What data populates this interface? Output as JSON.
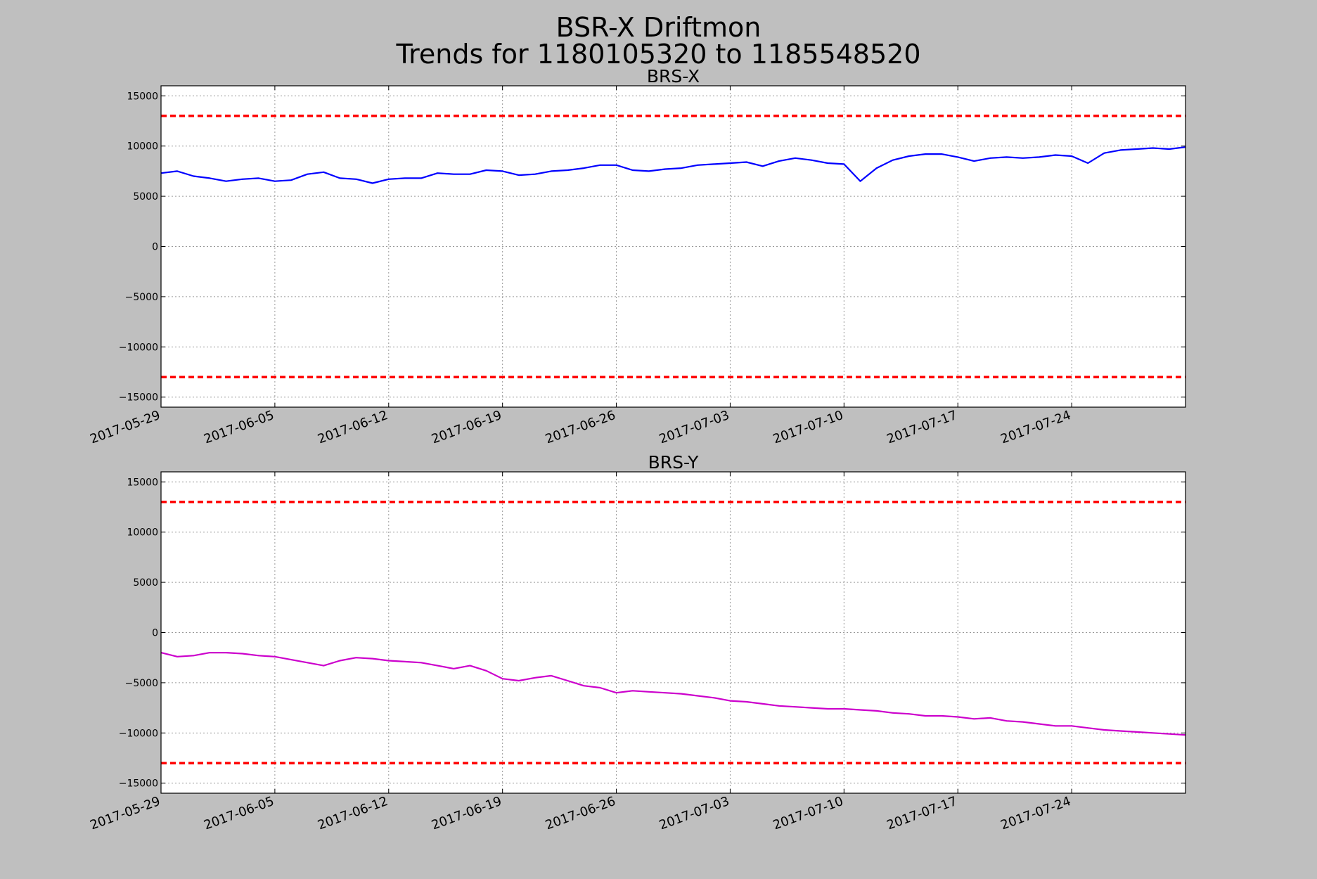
{
  "figure": {
    "title_line1": "BSR-X Driftmon",
    "title_line2": "Trends for 1180105320 to 1185548520",
    "background": "#bfbfbf"
  },
  "chart_data": [
    {
      "type": "line",
      "title": "BRS-X",
      "xlabel": "",
      "ylabel": "",
      "x_ticks": [
        "2017-05-29",
        "2017-06-05",
        "2017-06-12",
        "2017-06-19",
        "2017-06-26",
        "2017-07-03",
        "2017-07-10",
        "2017-07-17",
        "2017-07-24"
      ],
      "x_range": [
        "2017-05-29",
        "2017-07-31"
      ],
      "ylim": [
        -16000,
        16000
      ],
      "y_ticks": [
        15000,
        10000,
        5000,
        0,
        -5000,
        -10000,
        -15000
      ],
      "grid": true,
      "series": [
        {
          "color": "#0000ff",
          "points": [
            [
              "2017-05-29",
              7300
            ],
            [
              "2017-05-30",
              7500
            ],
            [
              "2017-05-31",
              7000
            ],
            [
              "2017-06-01",
              6800
            ],
            [
              "2017-06-02",
              6500
            ],
            [
              "2017-06-03",
              6700
            ],
            [
              "2017-06-04",
              6800
            ],
            [
              "2017-06-05",
              6500
            ],
            [
              "2017-06-06",
              6600
            ],
            [
              "2017-06-07",
              7200
            ],
            [
              "2017-06-08",
              7400
            ],
            [
              "2017-06-09",
              6800
            ],
            [
              "2017-06-10",
              6700
            ],
            [
              "2017-06-11",
              6300
            ],
            [
              "2017-06-12",
              6700
            ],
            [
              "2017-06-13",
              6800
            ],
            [
              "2017-06-14",
              6800
            ],
            [
              "2017-06-15",
              7300
            ],
            [
              "2017-06-16",
              7200
            ],
            [
              "2017-06-17",
              7200
            ],
            [
              "2017-06-18",
              7600
            ],
            [
              "2017-06-19",
              7500
            ],
            [
              "2017-06-20",
              7100
            ],
            [
              "2017-06-21",
              7200
            ],
            [
              "2017-06-22",
              7500
            ],
            [
              "2017-06-23",
              7600
            ],
            [
              "2017-06-24",
              7800
            ],
            [
              "2017-06-25",
              8100
            ],
            [
              "2017-06-26",
              8100
            ],
            [
              "2017-06-27",
              7600
            ],
            [
              "2017-06-28",
              7500
            ],
            [
              "2017-06-29",
              7700
            ],
            [
              "2017-06-30",
              7800
            ],
            [
              "2017-07-01",
              8100
            ],
            [
              "2017-07-02",
              8200
            ],
            [
              "2017-07-03",
              8300
            ],
            [
              "2017-07-04",
              8400
            ],
            [
              "2017-07-05",
              8000
            ],
            [
              "2017-07-06",
              8500
            ],
            [
              "2017-07-07",
              8800
            ],
            [
              "2017-07-08",
              8600
            ],
            [
              "2017-07-09",
              8300
            ],
            [
              "2017-07-10",
              8200
            ],
            [
              "2017-07-11",
              6500
            ],
            [
              "2017-07-12",
              7800
            ],
            [
              "2017-07-13",
              8600
            ],
            [
              "2017-07-14",
              9000
            ],
            [
              "2017-07-15",
              9200
            ],
            [
              "2017-07-16",
              9200
            ],
            [
              "2017-07-17",
              8900
            ],
            [
              "2017-07-18",
              8500
            ],
            [
              "2017-07-19",
              8800
            ],
            [
              "2017-07-20",
              8900
            ],
            [
              "2017-07-21",
              8800
            ],
            [
              "2017-07-22",
              8900
            ],
            [
              "2017-07-23",
              9100
            ],
            [
              "2017-07-24",
              9000
            ],
            [
              "2017-07-25",
              8300
            ],
            [
              "2017-07-26",
              9300
            ],
            [
              "2017-07-27",
              9600
            ],
            [
              "2017-07-28",
              9700
            ],
            [
              "2017-07-29",
              9800
            ],
            [
              "2017-07-30",
              9700
            ],
            [
              "2017-07-31",
              9900
            ]
          ]
        },
        {
          "color": "#ff0000",
          "style": "dashed",
          "points": [
            [
              "2017-05-29",
              13000
            ],
            [
              "2017-07-31",
              13000
            ]
          ]
        },
        {
          "color": "#ff0000",
          "style": "dashed",
          "points": [
            [
              "2017-05-29",
              -13000
            ],
            [
              "2017-07-31",
              -13000
            ]
          ]
        }
      ]
    },
    {
      "type": "line",
      "title": "BRS-Y",
      "xlabel": "",
      "ylabel": "",
      "x_ticks": [
        "2017-05-29",
        "2017-06-05",
        "2017-06-12",
        "2017-06-19",
        "2017-06-26",
        "2017-07-03",
        "2017-07-10",
        "2017-07-17",
        "2017-07-24"
      ],
      "x_range": [
        "2017-05-29",
        "2017-07-31"
      ],
      "ylim": [
        -16000,
        16000
      ],
      "y_ticks": [
        15000,
        10000,
        5000,
        0,
        -5000,
        -10000,
        -15000
      ],
      "grid": true,
      "series": [
        {
          "color": "#cc00cc",
          "points": [
            [
              "2017-05-29",
              -2000
            ],
            [
              "2017-05-30",
              -2400
            ],
            [
              "2017-05-31",
              -2300
            ],
            [
              "2017-06-01",
              -2000
            ],
            [
              "2017-06-02",
              -2000
            ],
            [
              "2017-06-03",
              -2100
            ],
            [
              "2017-06-04",
              -2300
            ],
            [
              "2017-06-05",
              -2400
            ],
            [
              "2017-06-06",
              -2700
            ],
            [
              "2017-06-07",
              -3000
            ],
            [
              "2017-06-08",
              -3300
            ],
            [
              "2017-06-09",
              -2800
            ],
            [
              "2017-06-10",
              -2500
            ],
            [
              "2017-06-11",
              -2600
            ],
            [
              "2017-06-12",
              -2800
            ],
            [
              "2017-06-13",
              -2900
            ],
            [
              "2017-06-14",
              -3000
            ],
            [
              "2017-06-15",
              -3300
            ],
            [
              "2017-06-16",
              -3600
            ],
            [
              "2017-06-17",
              -3300
            ],
            [
              "2017-06-18",
              -3800
            ],
            [
              "2017-06-19",
              -4600
            ],
            [
              "2017-06-20",
              -4800
            ],
            [
              "2017-06-21",
              -4500
            ],
            [
              "2017-06-22",
              -4300
            ],
            [
              "2017-06-23",
              -4800
            ],
            [
              "2017-06-24",
              -5300
            ],
            [
              "2017-06-25",
              -5500
            ],
            [
              "2017-06-26",
              -6000
            ],
            [
              "2017-06-27",
              -5800
            ],
            [
              "2017-06-28",
              -5900
            ],
            [
              "2017-06-29",
              -6000
            ],
            [
              "2017-06-30",
              -6100
            ],
            [
              "2017-07-01",
              -6300
            ],
            [
              "2017-07-02",
              -6500
            ],
            [
              "2017-07-03",
              -6800
            ],
            [
              "2017-07-04",
              -6900
            ],
            [
              "2017-07-05",
              -7100
            ],
            [
              "2017-07-06",
              -7300
            ],
            [
              "2017-07-07",
              -7400
            ],
            [
              "2017-07-08",
              -7500
            ],
            [
              "2017-07-09",
              -7600
            ],
            [
              "2017-07-10",
              -7600
            ],
            [
              "2017-07-11",
              -7700
            ],
            [
              "2017-07-12",
              -7800
            ],
            [
              "2017-07-13",
              -8000
            ],
            [
              "2017-07-14",
              -8100
            ],
            [
              "2017-07-15",
              -8300
            ],
            [
              "2017-07-16",
              -8300
            ],
            [
              "2017-07-17",
              -8400
            ],
            [
              "2017-07-18",
              -8600
            ],
            [
              "2017-07-19",
              -8500
            ],
            [
              "2017-07-20",
              -8800
            ],
            [
              "2017-07-21",
              -8900
            ],
            [
              "2017-07-22",
              -9100
            ],
            [
              "2017-07-23",
              -9300
            ],
            [
              "2017-07-24",
              -9300
            ],
            [
              "2017-07-25",
              -9500
            ],
            [
              "2017-07-26",
              -9700
            ],
            [
              "2017-07-27",
              -9800
            ],
            [
              "2017-07-28",
              -9900
            ],
            [
              "2017-07-29",
              -10000
            ],
            [
              "2017-07-30",
              -10100
            ],
            [
              "2017-07-31",
              -10200
            ]
          ]
        },
        {
          "color": "#ff0000",
          "style": "dashed",
          "points": [
            [
              "2017-05-29",
              13000
            ],
            [
              "2017-07-31",
              13000
            ]
          ]
        },
        {
          "color": "#ff0000",
          "style": "dashed",
          "points": [
            [
              "2017-05-29",
              -13000
            ],
            [
              "2017-07-31",
              -13000
            ]
          ]
        }
      ]
    }
  ]
}
